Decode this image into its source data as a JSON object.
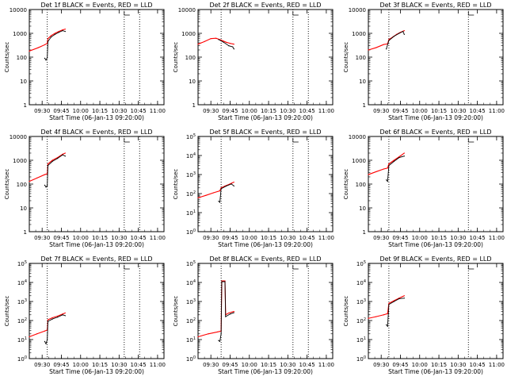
{
  "page": {
    "xlabel": "Start Time (06-Jan-13 09:20:00)",
    "ylabel": "Counts/sec",
    "time_ticks": [
      "09:30",
      "09:45",
      "10:00",
      "10:15",
      "10:30",
      "10:45",
      "11:00"
    ],
    "colors": {
      "events": "#000000",
      "lld": "#ff0000",
      "axis": "#000000"
    }
  },
  "chart_data": [
    {
      "type": "line",
      "title": "Det 1f BLACK = Events, RED = LLD",
      "xlabel": "Start Time (06-Jan-13 09:20:00)",
      "ylabel": "Counts/sec",
      "xlim": [
        "09:20",
        "11:05"
      ],
      "ylim": [
        1,
        10000
      ],
      "yticks": [
        "1",
        "10",
        "100",
        "1000",
        "10000"
      ],
      "vlines": [
        "09:34",
        "10:34",
        "10:46"
      ],
      "series": [
        {
          "role": "lld",
          "points": [
            [
              "09:20",
              180
            ],
            [
              "09:27",
              250
            ],
            [
              "09:32",
              330
            ],
            [
              "09:34",
              380
            ],
            [
              "09:34.5",
              600
            ],
            [
              "09:37",
              800
            ],
            [
              "09:40",
              1000
            ],
            [
              "09:43",
              1200
            ],
            [
              "09:46",
              1400
            ],
            [
              "09:48",
              1500
            ]
          ]
        },
        {
          "role": "events",
          "points": [
            [
              "09:32",
              90
            ],
            [
              "09:33",
              75
            ],
            [
              "09:34",
              95
            ],
            [
              "09:34.5",
              450
            ],
            [
              "09:37",
              700
            ],
            [
              "09:40",
              900
            ],
            [
              "09:43",
              1100
            ],
            [
              "09:46",
              1300
            ],
            [
              "09:48",
              1200
            ]
          ]
        }
      ]
    },
    {
      "type": "line",
      "title": "Det 2f BLACK = Events, RED = LLD",
      "xlabel": "Start Time (06-Jan-13 09:20:00)",
      "ylabel": "Counts/sec",
      "xlim": [
        "09:20",
        "11:05"
      ],
      "ylim": [
        1,
        10000
      ],
      "yticks": [
        "1",
        "10",
        "100",
        "1000",
        "10000"
      ],
      "vlines": [
        "09:38",
        "10:34",
        "10:46"
      ],
      "series": [
        {
          "role": "lld",
          "points": [
            [
              "09:20",
              350
            ],
            [
              "09:25",
              450
            ],
            [
              "09:30",
              600
            ],
            [
              "09:34",
              620
            ],
            [
              "09:38",
              520
            ],
            [
              "09:42",
              420
            ],
            [
              "09:45",
              380
            ],
            [
              "09:48",
              350
            ]
          ]
        },
        {
          "role": "events",
          "points": [
            [
              "09:36",
              550
            ],
            [
              "09:40",
              420
            ],
            [
              "09:44",
              300
            ],
            [
              "09:47",
              270
            ],
            [
              "09:48",
              220
            ]
          ]
        }
      ]
    },
    {
      "type": "line",
      "title": "Det 3f BLACK = Events, RED = LLD",
      "xlabel": "Start Time (06-Jan-13 09:20:00)",
      "ylabel": "Counts/sec",
      "xlim": [
        "09:20",
        "11:05"
      ],
      "ylim": [
        1,
        10000
      ],
      "yticks": [
        "1",
        "10",
        "100",
        "1000",
        "10000"
      ],
      "vlines": [
        "09:36",
        "10:38"
      ],
      "series": [
        {
          "role": "lld",
          "points": [
            [
              "09:20",
              200
            ],
            [
              "09:26",
              250
            ],
            [
              "09:32",
              340
            ],
            [
              "09:35",
              360
            ],
            [
              "09:36",
              550
            ],
            [
              "09:39",
              700
            ],
            [
              "09:42",
              900
            ],
            [
              "09:45",
              1100
            ],
            [
              "09:48",
              1300
            ]
          ]
        },
        {
          "role": "events",
          "points": [
            [
              "09:34",
              220
            ],
            [
              "09:36",
              500
            ],
            [
              "09:40",
              750
            ],
            [
              "09:44",
              1000
            ],
            [
              "09:47",
              1200
            ],
            [
              "09:48",
              900
            ]
          ]
        }
      ]
    },
    {
      "type": "line",
      "title": "Det 4f BLACK = Events, RED = LLD",
      "xlabel": "Start Time (06-Jan-13 09:20:00)",
      "ylabel": "Counts/sec",
      "xlim": [
        "09:20",
        "11:05"
      ],
      "ylim": [
        1,
        10000
      ],
      "yticks": [
        "1",
        "10",
        "100",
        "1000",
        "10000"
      ],
      "vlines": [
        "09:34",
        "10:34",
        "10:46"
      ],
      "series": [
        {
          "role": "lld",
          "points": [
            [
              "09:20",
              130
            ],
            [
              "09:26",
              180
            ],
            [
              "09:32",
              250
            ],
            [
              "09:34",
              270
            ],
            [
              "09:34.5",
              700
            ],
            [
              "09:38",
              1000
            ],
            [
              "09:42",
              1300
            ],
            [
              "09:46",
              1800
            ],
            [
              "09:48",
              2000
            ]
          ]
        },
        {
          "role": "events",
          "points": [
            [
              "09:32",
              90
            ],
            [
              "09:33",
              75
            ],
            [
              "09:34",
              85
            ],
            [
              "09:34.5",
              600
            ],
            [
              "09:38",
              900
            ],
            [
              "09:42",
              1200
            ],
            [
              "09:46",
              1700
            ],
            [
              "09:48",
              1500
            ]
          ]
        }
      ]
    },
    {
      "type": "line",
      "title": "Det 5f BLACK = Events, RED = LLD",
      "xlabel": "Start Time (06-Jan-13 09:20:00)",
      "ylabel": "Counts/sec",
      "xlim": [
        "09:20",
        "11:05"
      ],
      "ylim": [
        1,
        100000
      ],
      "yticks": [
        "10^0",
        "10^1",
        "10^2",
        "10^3",
        "10^4",
        "10^5"
      ],
      "vlines": [
        "09:38",
        "10:34",
        "10:46"
      ],
      "series": [
        {
          "role": "lld",
          "points": [
            [
              "09:20",
              60
            ],
            [
              "09:26",
              80
            ],
            [
              "09:32",
              110
            ],
            [
              "09:37",
              140
            ],
            [
              "09:38",
              200
            ],
            [
              "09:41",
              250
            ],
            [
              "09:44",
              300
            ],
            [
              "09:48",
              400
            ]
          ]
        },
        {
          "role": "events",
          "points": [
            [
              "09:36",
              40
            ],
            [
              "09:37",
              35
            ],
            [
              "09:38",
              180
            ],
            [
              "09:42",
              250
            ],
            [
              "09:46",
              320
            ],
            [
              "09:48",
              250
            ]
          ]
        }
      ]
    },
    {
      "type": "line",
      "title": "Det 6f BLACK = Events, RED = LLD",
      "xlabel": "Start Time (06-Jan-13 09:20:00)",
      "ylabel": "Counts/sec",
      "xlim": [
        "09:20",
        "11:05"
      ],
      "ylim": [
        1,
        10000
      ],
      "yticks": [
        "1",
        "10",
        "100",
        "1000",
        "10000"
      ],
      "vlines": [
        "09:36",
        "10:38"
      ],
      "series": [
        {
          "role": "lld",
          "points": [
            [
              "09:20",
              250
            ],
            [
              "09:26",
              330
            ],
            [
              "09:32",
              430
            ],
            [
              "09:35",
              470
            ],
            [
              "09:36",
              700
            ],
            [
              "09:40",
              1000
            ],
            [
              "09:44",
              1400
            ],
            [
              "09:48",
              2000
            ]
          ]
        },
        {
          "role": "events",
          "points": [
            [
              "09:34",
              150
            ],
            [
              "09:35",
              130
            ],
            [
              "09:36",
              600
            ],
            [
              "09:40",
              900
            ],
            [
              "09:44",
              1300
            ],
            [
              "09:48",
              1500
            ]
          ]
        }
      ]
    },
    {
      "type": "line",
      "title": "Det 7f BLACK = Events, RED = LLD",
      "xlabel": "Start Time (06-Jan-13 09:20:00)",
      "ylabel": "Counts/sec",
      "xlim": [
        "09:20",
        "11:05"
      ],
      "ylim": [
        1,
        100000
      ],
      "yticks": [
        "10^0",
        "10^1",
        "10^2",
        "10^3",
        "10^4",
        "10^5"
      ],
      "vlines": [
        "09:34",
        "10:34",
        "10:46"
      ],
      "series": [
        {
          "role": "lld",
          "points": [
            [
              "09:20",
              14
            ],
            [
              "09:26",
              20
            ],
            [
              "09:32",
              28
            ],
            [
              "09:34",
              32
            ],
            [
              "09:34.5",
              110
            ],
            [
              "09:38",
              140
            ],
            [
              "09:42",
              170
            ],
            [
              "09:46",
              220
            ],
            [
              "09:48",
              250
            ]
          ]
        },
        {
          "role": "events",
          "points": [
            [
              "09:32",
              8
            ],
            [
              "09:33",
              6
            ],
            [
              "09:34",
              10
            ],
            [
              "09:34.5",
              90
            ],
            [
              "09:38",
              120
            ],
            [
              "09:42",
              150
            ],
            [
              "09:46",
              200
            ],
            [
              "09:48",
              180
            ]
          ]
        }
      ]
    },
    {
      "type": "line",
      "title": "Det 8f BLACK = Events, RED = LLD",
      "xlabel": "Start Time (06-Jan-13 09:20:00)",
      "ylabel": "Counts/sec",
      "xlim": [
        "09:20",
        "11:05"
      ],
      "ylim": [
        1,
        100000
      ],
      "yticks": [
        "10^0",
        "10^1",
        "10^2",
        "10^3",
        "10^4",
        "10^5"
      ],
      "vlines": [
        "09:38",
        "10:34",
        "10:46"
      ],
      "series": [
        {
          "role": "lld",
          "points": [
            [
              "09:20",
              14
            ],
            [
              "09:28",
              20
            ],
            [
              "09:35",
              25
            ],
            [
              "09:38",
              28
            ],
            [
              "09:38.5",
              12000
            ],
            [
              "09:41",
              12000
            ],
            [
              "09:41.5",
              200
            ],
            [
              "09:44",
              250
            ],
            [
              "09:48",
              300
            ]
          ]
        },
        {
          "role": "events",
          "points": [
            [
              "09:36",
              9
            ],
            [
              "09:37",
              8
            ],
            [
              "09:38",
              20
            ],
            [
              "09:38.5",
              11000
            ],
            [
              "09:41",
              11000
            ],
            [
              "09:41.5",
              160
            ],
            [
              "09:45",
              220
            ],
            [
              "09:48",
              260
            ]
          ]
        }
      ]
    },
    {
      "type": "line",
      "title": "Det 9f BLACK = Events, RED = LLD",
      "xlabel": "Start Time (06-Jan-13 09:20:00)",
      "ylabel": "Counts/sec",
      "xlim": [
        "09:20",
        "11:05"
      ],
      "ylim": [
        1,
        100000
      ],
      "yticks": [
        "10^0",
        "10^1",
        "10^2",
        "10^3",
        "10^4",
        "10^5"
      ],
      "vlines": [
        "09:36",
        "10:38"
      ],
      "series": [
        {
          "role": "lld",
          "points": [
            [
              "09:20",
              130
            ],
            [
              "09:26",
              160
            ],
            [
              "09:32",
              200
            ],
            [
              "09:35",
              230
            ],
            [
              "09:36",
              800
            ],
            [
              "09:40",
              1100
            ],
            [
              "09:44",
              1500
            ],
            [
              "09:48",
              2000
            ]
          ]
        },
        {
          "role": "events",
          "points": [
            [
              "09:34",
              60
            ],
            [
              "09:35",
              50
            ],
            [
              "09:36",
              700
            ],
            [
              "09:40",
              1000
            ],
            [
              "09:44",
              1400
            ],
            [
              "09:48",
              1500
            ]
          ]
        }
      ]
    }
  ]
}
